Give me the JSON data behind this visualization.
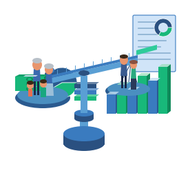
{
  "bg_color": "#ffffff",
  "scale_dark": "#2a5080",
  "scale_mid": "#3a7bbf",
  "scale_light": "#5a9fd4",
  "scale_indicator": "#2ecc9a",
  "pan_dark": "#2a5a8f",
  "pan_mid": "#4a8fc0",
  "money_green": "#18b87a",
  "money_dark": "#0f8a5a",
  "money_mid": "#12a06a",
  "money_band": "#c8d8e8",
  "bar_blue": "#3a7bbf",
  "bar_green": "#18b87a",
  "bar_blue_dark": "#2a5a8f",
  "bar_green_dark": "#0f8a5a",
  "pie_blue": "#2a5a8f",
  "pie_green": "#18b87a",
  "pie_light": "#c0d8f0",
  "doc_bg": "#d0e4f8",
  "doc_line": "#8ab0d0",
  "doc_border": "#3a7bbf",
  "skin": "#e8956d",
  "skin_dark": "#c07850",
  "hair_gray": "#b8c0c8",
  "hair_dark": "#3a2818",
  "shirt_blue": "#3a6aaf",
  "shirt_teal": "#18a880",
  "shirt_green": "#2aaa70",
  "pants_dark": "#1a2a4a",
  "figsize": [
    2.6,
    2.8
  ],
  "dpi": 100
}
